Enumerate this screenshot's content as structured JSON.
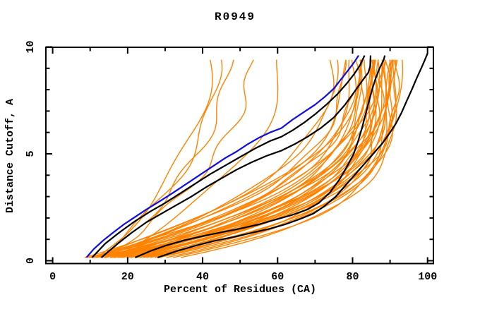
{
  "chart": {
    "title": "R0949",
    "xlabel": "Percent of Residues (CA)",
    "ylabel": "Distance Cutoff, A"
  },
  "chart_data": {
    "type": "line",
    "title": "R0949",
    "xlabel": "Percent of Residues (CA)",
    "ylabel": "Distance Cutoff, A",
    "xlim": [
      -2,
      101.7
    ],
    "ylim": [
      -0.15,
      10.05
    ],
    "grid": false,
    "legend": "none",
    "x_ticks": {
      "major": [
        0,
        20,
        40,
        60,
        80,
        100
      ],
      "minor": [
        10,
        30,
        50,
        70,
        90
      ]
    },
    "y_ticks": {
      "major": [
        0,
        5,
        10
      ],
      "minor": [
        1,
        2,
        3,
        4,
        6,
        7,
        8,
        9
      ]
    },
    "colors": {
      "model_bundle": "#ff8200",
      "highlight": "#000000",
      "reference_blue": "#0d0de0",
      "frame": "#000000"
    },
    "series": [
      {
        "name": "blue-curve",
        "color": "#0d0de0",
        "points": [
          [
            9,
            0.15
          ],
          [
            11,
            0.55
          ],
          [
            13.5,
            0.95
          ],
          [
            16,
            1.3
          ],
          [
            19,
            1.7
          ],
          [
            22,
            2.05
          ],
          [
            25,
            2.4
          ],
          [
            28,
            2.72
          ],
          [
            31,
            3.05
          ],
          [
            34,
            3.4
          ],
          [
            37,
            3.75
          ],
          [
            40,
            4.1
          ],
          [
            43,
            4.45
          ],
          [
            46,
            4.8
          ],
          [
            49,
            5.1
          ],
          [
            52,
            5.45
          ],
          [
            55,
            5.75
          ],
          [
            58,
            6.0
          ],
          [
            61,
            6.2
          ],
          [
            64,
            6.6
          ],
          [
            67,
            6.95
          ],
          [
            70,
            7.3
          ],
          [
            72.5,
            7.65
          ],
          [
            75,
            8.05
          ],
          [
            77,
            8.5
          ],
          [
            79,
            8.95
          ],
          [
            80.5,
            9.3
          ],
          [
            81.6,
            9.6
          ]
        ]
      },
      {
        "name": "black-curve-1",
        "color": "#000000",
        "points": [
          [
            10.5,
            0.15
          ],
          [
            14,
            0.8
          ],
          [
            18,
            1.35
          ],
          [
            22,
            1.85
          ],
          [
            26,
            2.3
          ],
          [
            30,
            2.7
          ],
          [
            34,
            3.15
          ],
          [
            38,
            3.6
          ],
          [
            42,
            4.05
          ],
          [
            46,
            4.45
          ],
          [
            50,
            4.85
          ],
          [
            54,
            5.25
          ],
          [
            58,
            5.6
          ],
          [
            61,
            5.8
          ],
          [
            64,
            6.1
          ],
          [
            67,
            6.45
          ],
          [
            70,
            6.85
          ],
          [
            73,
            7.3
          ],
          [
            76,
            7.8
          ],
          [
            78.5,
            8.3
          ],
          [
            80.5,
            8.75
          ],
          [
            82,
            9.15
          ],
          [
            83.2,
            9.6
          ]
        ]
      },
      {
        "name": "black-curve-2",
        "color": "#000000",
        "points": [
          [
            13,
            0.15
          ],
          [
            17,
            0.75
          ],
          [
            21,
            1.3
          ],
          [
            25,
            1.8
          ],
          [
            29,
            2.2
          ],
          [
            33,
            2.6
          ],
          [
            37,
            3.0
          ],
          [
            41,
            3.45
          ],
          [
            45,
            3.85
          ],
          [
            49,
            4.25
          ],
          [
            53,
            4.6
          ],
          [
            57,
            4.9
          ],
          [
            61,
            5.15
          ],
          [
            64.5,
            5.45
          ],
          [
            68,
            5.8
          ],
          [
            71.5,
            6.2
          ],
          [
            75,
            6.7
          ],
          [
            78,
            7.3
          ],
          [
            80.5,
            7.9
          ],
          [
            82.5,
            8.4
          ],
          [
            84.2,
            8.8
          ],
          [
            84.7,
            9.1
          ],
          [
            84.8,
            9.6
          ]
        ]
      },
      {
        "name": "black-curve-3",
        "color": "#000000",
        "points": [
          [
            22,
            0.15
          ],
          [
            26,
            0.45
          ],
          [
            30,
            0.7
          ],
          [
            35,
            0.95
          ],
          [
            40,
            1.15
          ],
          [
            45,
            1.33
          ],
          [
            50,
            1.5
          ],
          [
            55,
            1.7
          ],
          [
            60,
            1.95
          ],
          [
            64,
            2.15
          ],
          [
            68,
            2.4
          ],
          [
            71,
            2.7
          ],
          [
            74,
            3.2
          ],
          [
            76.5,
            3.8
          ],
          [
            78.5,
            4.4
          ],
          [
            80.3,
            5.0
          ],
          [
            81.5,
            5.6
          ],
          [
            82.5,
            6.2
          ],
          [
            83.4,
            6.8
          ],
          [
            84.3,
            7.4
          ],
          [
            85.2,
            8.0
          ],
          [
            86.1,
            8.5
          ],
          [
            87.2,
            9.0
          ],
          [
            88.3,
            9.4
          ],
          [
            88.6,
            9.6
          ]
        ]
      },
      {
        "name": "black-curve-4",
        "color": "#000000",
        "points": [
          [
            28,
            0.15
          ],
          [
            33,
            0.45
          ],
          [
            38,
            0.7
          ],
          [
            43,
            0.92
          ],
          [
            48,
            1.1
          ],
          [
            53,
            1.3
          ],
          [
            58,
            1.5
          ],
          [
            62,
            1.7
          ],
          [
            66,
            1.95
          ],
          [
            69.5,
            2.2
          ],
          [
            72.5,
            2.55
          ],
          [
            75.5,
            3.0
          ],
          [
            78,
            3.5
          ],
          [
            80.5,
            4.0
          ],
          [
            83,
            4.5
          ],
          [
            85.5,
            5.0
          ],
          [
            88,
            5.5
          ],
          [
            90,
            6.0
          ],
          [
            91.5,
            6.4
          ],
          [
            93,
            6.9
          ],
          [
            94.5,
            7.5
          ],
          [
            95.8,
            8.0
          ],
          [
            97,
            8.5
          ],
          [
            98.3,
            9.0
          ],
          [
            99.3,
            9.4
          ],
          [
            100,
            9.7
          ]
        ]
      }
    ],
    "orange_bundle": {
      "description": "each entry = [x_start_pct_at_cutoff_0, x_pct_at_cutoff_9.6, shape_exponent]",
      "v_range": [
        0.15,
        9.55
      ],
      "v_step": 0.25,
      "v_max": 9.6,
      "jitter": {
        "amp_base": 0.5,
        "amp_mod": 0.28,
        "outlier_amp": 1.3,
        "freq_base": 1.0,
        "freq_mod": 0.37,
        "phase_step": 1.93
      },
      "params": [
        [
          11,
          42,
          2.0
        ],
        [
          12,
          44,
          2.1
        ],
        [
          13,
          47,
          1.9
        ],
        [
          12.5,
          53,
          2.0
        ],
        [
          14,
          61,
          2.2
        ],
        [
          8,
          74.5,
          2.6
        ],
        [
          9,
          75.8,
          2.5
        ],
        [
          7,
          77.5,
          2.8
        ],
        [
          10,
          78.5,
          2.6
        ],
        [
          8.5,
          79.5,
          2.9
        ],
        [
          6,
          80.5,
          3.0
        ],
        [
          11,
          81,
          2.7
        ],
        [
          9.5,
          81.8,
          3.1
        ],
        [
          7.5,
          82.5,
          2.9
        ],
        [
          12,
          83,
          3.0
        ],
        [
          10.5,
          83.6,
          3.2
        ],
        [
          8,
          84.2,
          3.3
        ],
        [
          13,
          84.8,
          3.0
        ],
        [
          11.5,
          85.3,
          3.4
        ],
        [
          9,
          85.8,
          3.2
        ],
        [
          14,
          86.3,
          3.1
        ],
        [
          10,
          86.8,
          3.5
        ],
        [
          12.5,
          87.3,
          3.3
        ],
        [
          15,
          87.8,
          3.2
        ],
        [
          11,
          88.3,
          3.6
        ],
        [
          13.5,
          88.8,
          3.4
        ],
        [
          16,
          89.3,
          3.3
        ],
        [
          12,
          89.8,
          3.7
        ],
        [
          17,
          90.3,
          3.5
        ],
        [
          14,
          90.8,
          3.6
        ],
        [
          18,
          91.3,
          3.8
        ],
        [
          15.5,
          91.8,
          3.7
        ],
        [
          20,
          92.3,
          3.9
        ],
        [
          16.5,
          84.5,
          4.0
        ],
        [
          19,
          86,
          4.1
        ],
        [
          22,
          87.5,
          4.2
        ],
        [
          24,
          88.5,
          4.3
        ],
        [
          26,
          89.5,
          4.4
        ],
        [
          28,
          90.5,
          4.5
        ],
        [
          30,
          91.5,
          4.4
        ],
        [
          5.5,
          83,
          2.4
        ],
        [
          6.5,
          86,
          2.7
        ],
        [
          18.5,
          82,
          3.8
        ],
        [
          21,
          85,
          4.0
        ],
        [
          23,
          90,
          4.2
        ]
      ]
    }
  }
}
